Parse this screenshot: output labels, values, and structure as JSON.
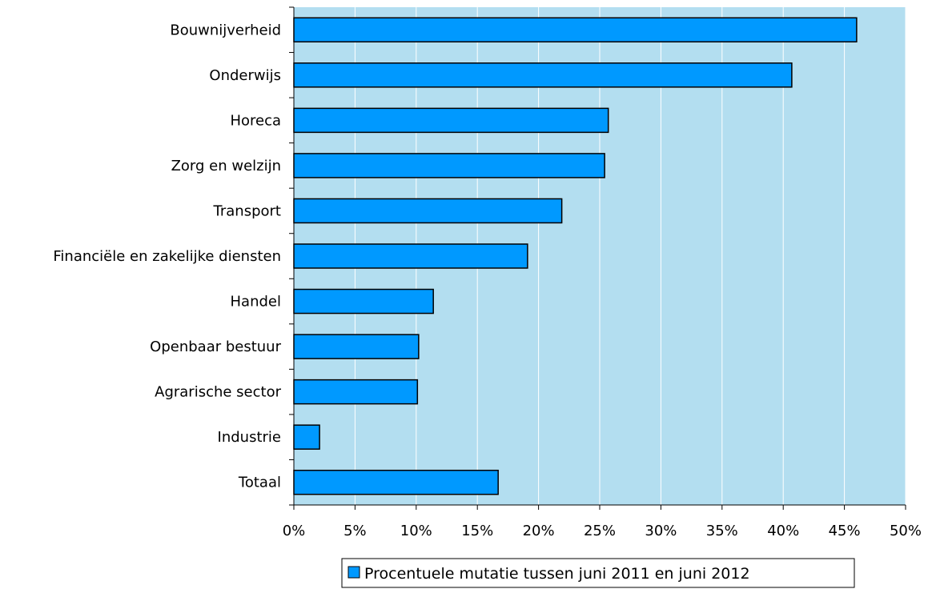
{
  "chart_data": {
    "type": "bar",
    "orientation": "horizontal",
    "categories": [
      "Bouwnijverheid",
      "Onderwijs",
      "Horeca",
      "Zorg en welzijn",
      "Transport",
      "Financiële en zakelijke diensten",
      "Handel",
      "Openbaar bestuur",
      "Agrarische sector",
      "Industrie",
      "Totaal"
    ],
    "series": [
      {
        "name": "Procentuele mutatie tussen juni 2011 en juni 2012",
        "values": [
          46.0,
          40.7,
          25.7,
          25.4,
          21.9,
          19.1,
          11.4,
          10.2,
          10.1,
          2.1,
          16.7
        ]
      }
    ],
    "xlim": [
      0,
      50
    ],
    "xticks": [
      0,
      5,
      10,
      15,
      20,
      25,
      30,
      35,
      40,
      45,
      50
    ],
    "tick_suffix": "%",
    "grid": "vertical",
    "legend": "bottom",
    "colors": {
      "bar": "#0099ff",
      "plot_background": "#b3def0",
      "gridline": "#ffffff",
      "bar_border": "#000000"
    }
  }
}
